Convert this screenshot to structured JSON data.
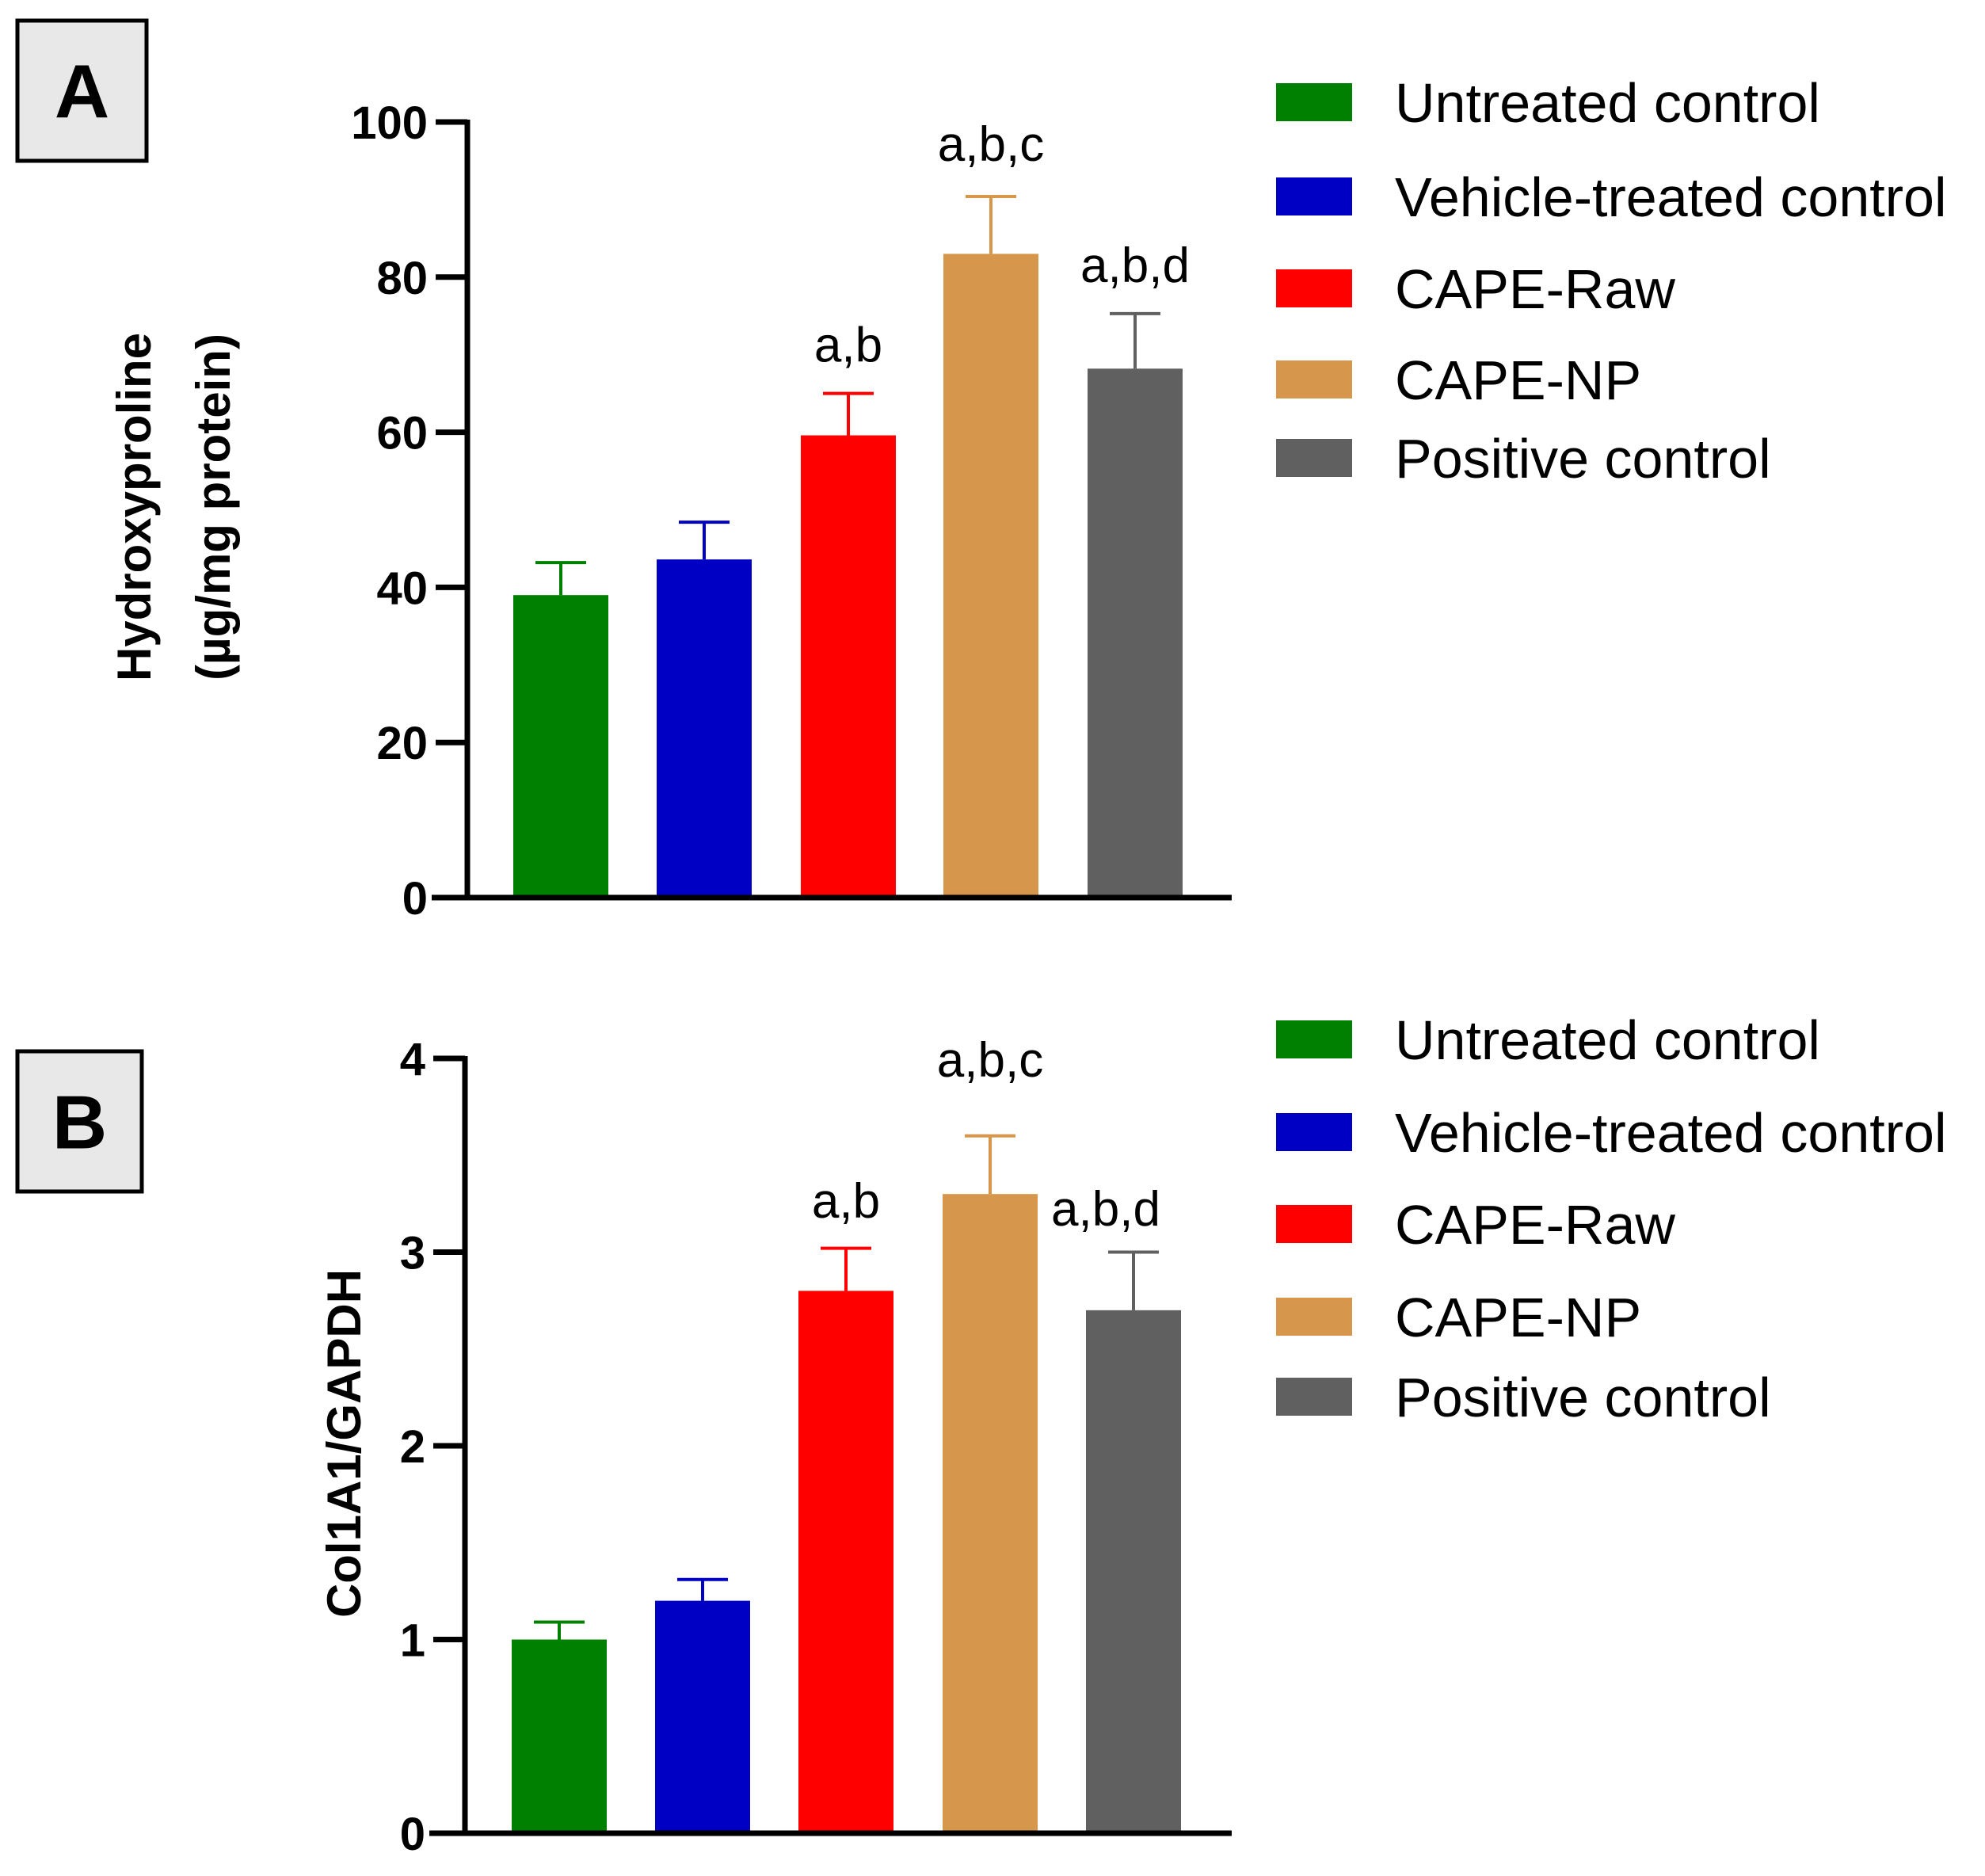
{
  "chart_data": [
    {
      "type": "bar",
      "panel_label": "A",
      "ylabel_lines": [
        "Hydroxyproline",
        "(µg/mg protein)"
      ],
      "ylim": [
        0,
        100
      ],
      "yticks": [
        "0",
        "20",
        "40",
        "60",
        "80",
        "100"
      ],
      "ytick_values": [
        0,
        20,
        40,
        60,
        80,
        100
      ],
      "categories": [
        "Untreated control",
        "Vehicle-treated control",
        "CAPE-Raw",
        "CAPE-NP",
        "Positive control"
      ],
      "values": [
        39.0,
        43.6,
        59.6,
        83.0,
        68.2
      ],
      "error_upper": [
        43.2,
        48.4,
        65.0,
        90.4,
        75.3
      ],
      "annotations": [
        "",
        "",
        "a,b",
        "a,b,c",
        "a,b,d"
      ],
      "legend": [
        "Untreated control",
        "Vehicle-treated control",
        "CAPE-Raw",
        "CAPE-NP",
        "Positive control"
      ],
      "legend_position": "right"
    },
    {
      "type": "bar",
      "panel_label": "B",
      "ylabel_lines": [
        "Col1A1/GAPDH"
      ],
      "ylim": [
        0,
        4
      ],
      "yticks": [
        "0",
        "1",
        "2",
        "3",
        "4"
      ],
      "ytick_values": [
        0,
        1,
        2,
        3,
        4
      ],
      "categories": [
        "Untreated control",
        "Vehicle-treated control",
        "CAPE-Raw",
        "CAPE-NP",
        "Positive control"
      ],
      "values": [
        1.0,
        1.2,
        2.8,
        3.3,
        2.7
      ],
      "error_upper": [
        1.09,
        1.31,
        3.02,
        3.6,
        3.0
      ],
      "annotations": [
        "",
        "",
        "a,b",
        "a,b,c",
        "a,b,d"
      ],
      "legend": [
        "Untreated control",
        "Vehicle-treated control",
        "CAPE-Raw",
        "CAPE-NP",
        "Positive control"
      ],
      "legend_position": "right"
    }
  ],
  "colors": [
    "#008000",
    "#0000c4",
    "#ff0000",
    "#d6964b",
    "#606060"
  ]
}
